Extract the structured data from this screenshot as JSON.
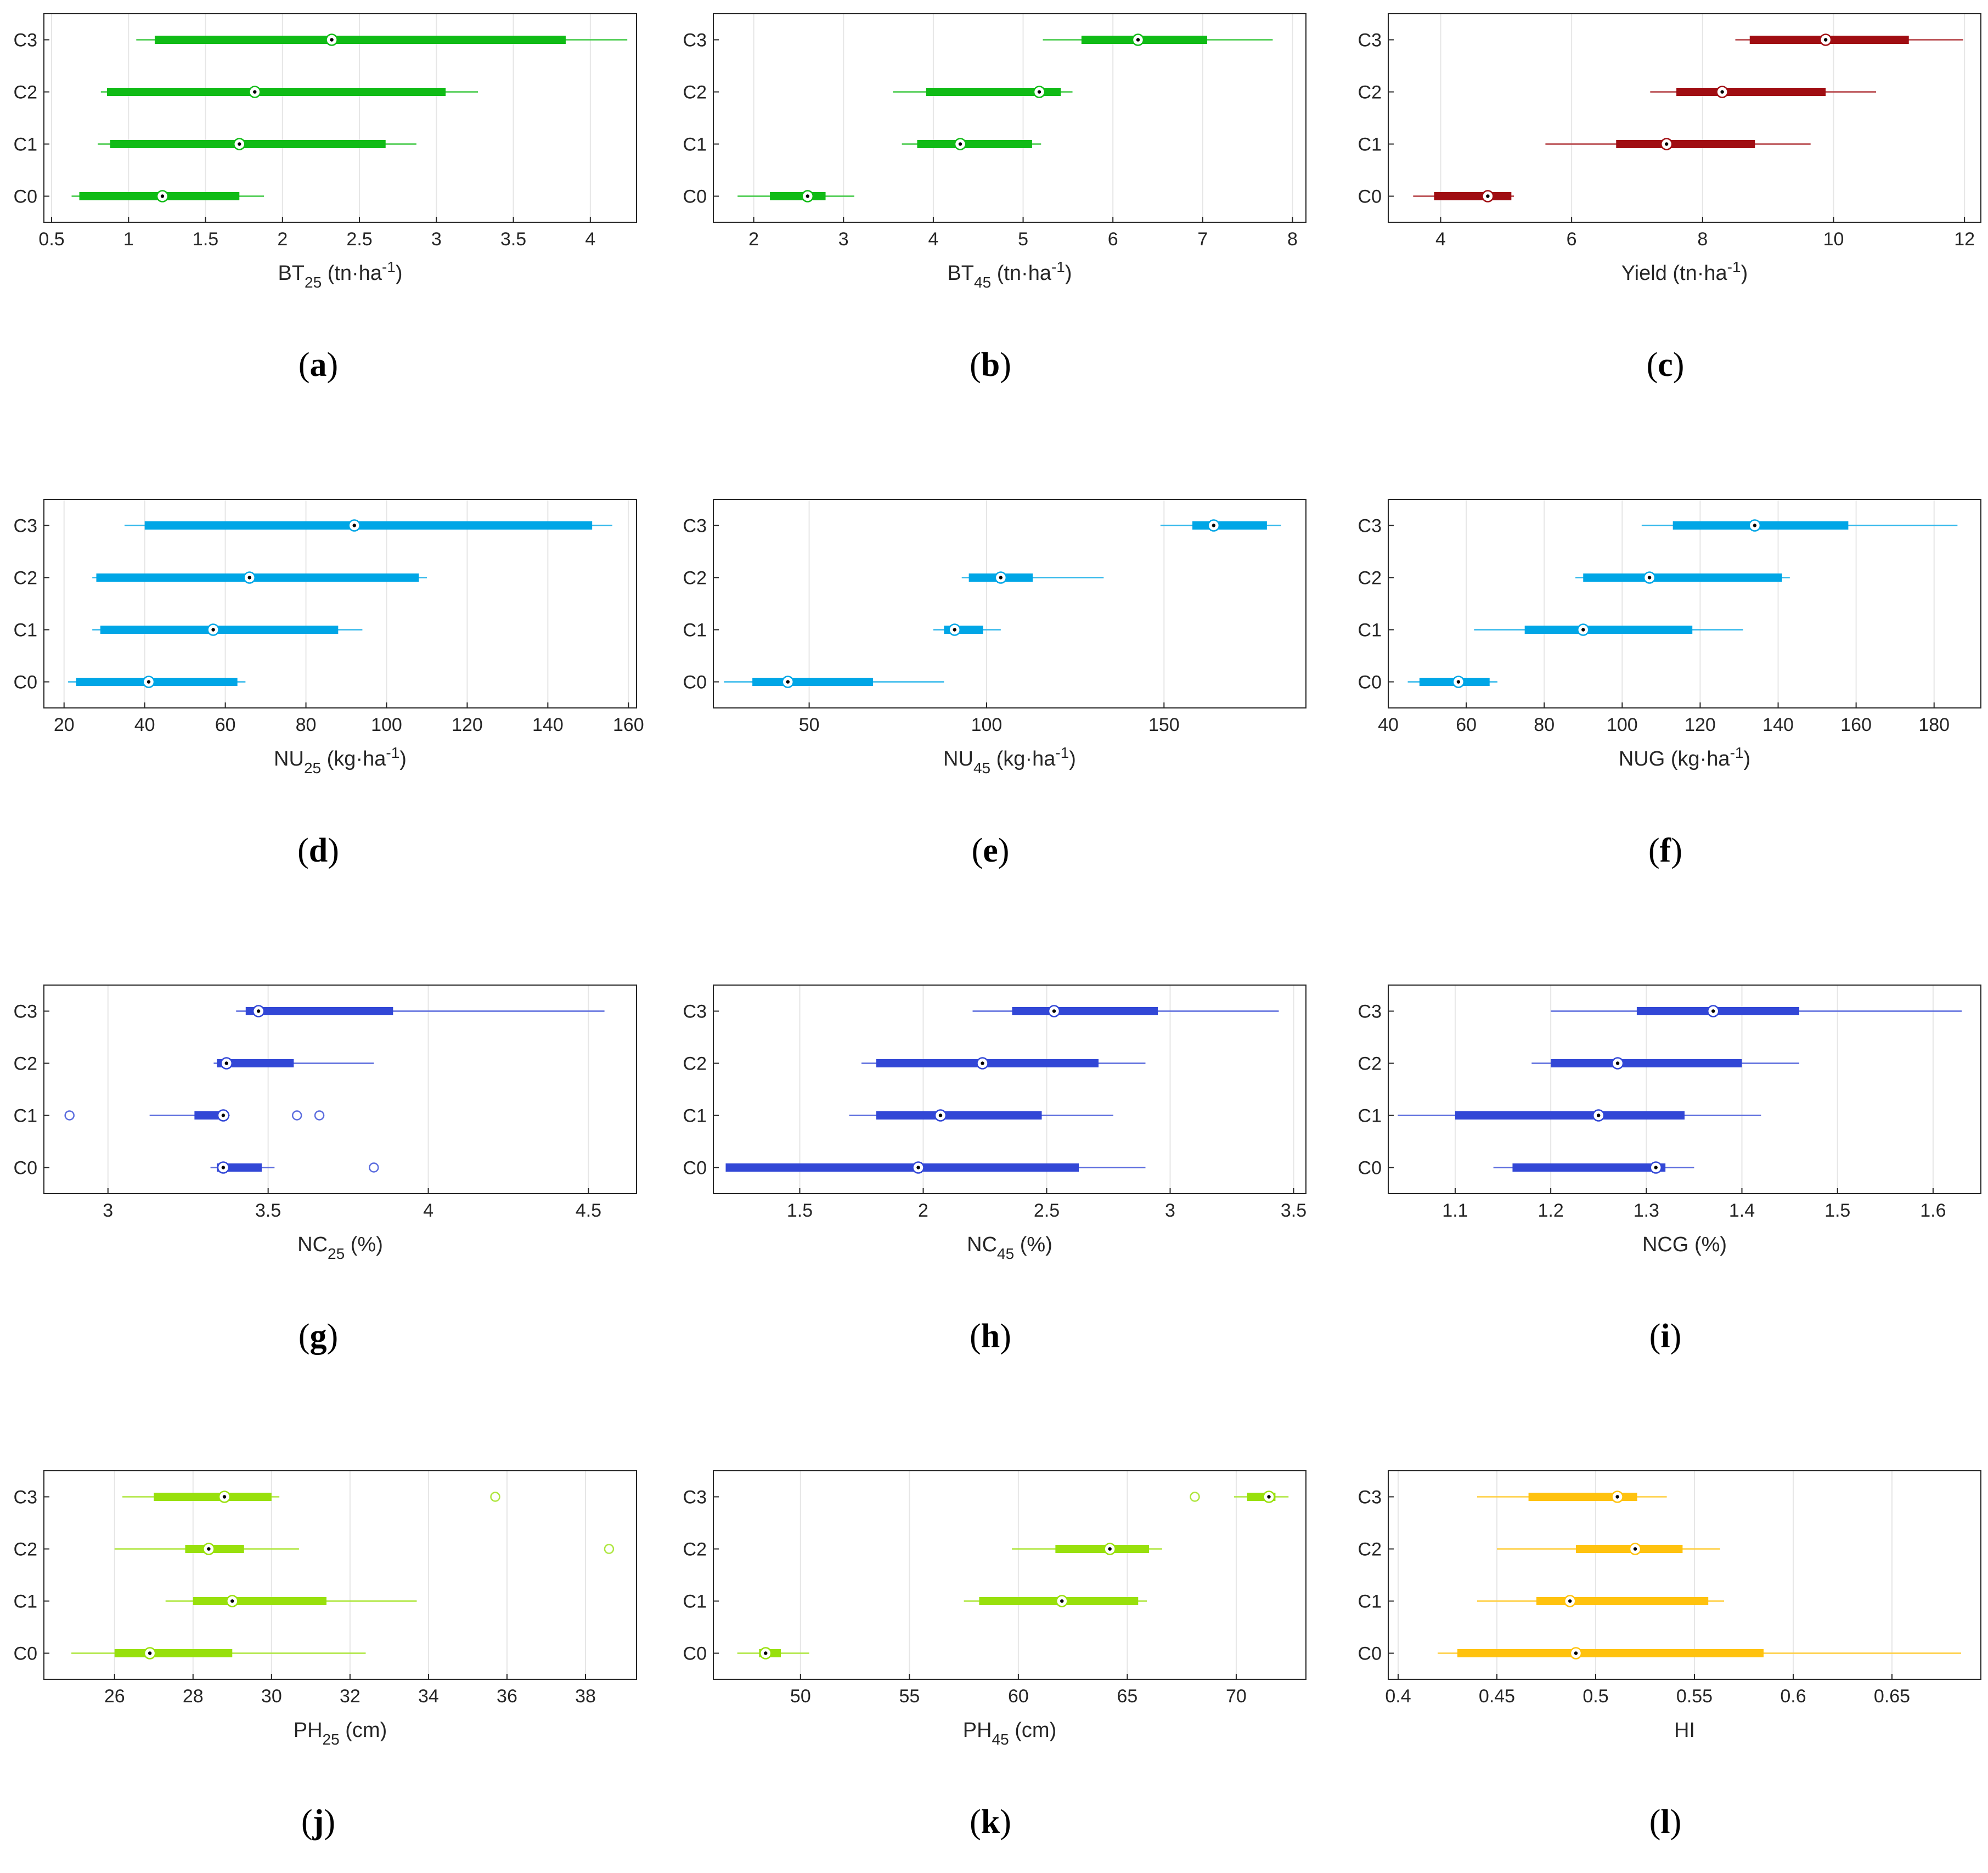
{
  "figure": {
    "panel_labels": [
      "a",
      "b",
      "c",
      "d",
      "e",
      "f",
      "g",
      "h",
      "i",
      "j",
      "k",
      "l"
    ]
  },
  "chart_data": [
    {
      "id": "a",
      "type": "boxplot-horizontal",
      "color": "#10bb16",
      "xlabel": {
        "main": "BT",
        "sub": "25",
        "unit": " (tn·ha",
        "sup": "-1",
        "close": ")"
      },
      "categories": [
        "C0",
        "C1",
        "C2",
        "C3"
      ],
      "xlim": [
        0.45,
        4.3
      ],
      "xticks": [
        0.5,
        1,
        1.5,
        2,
        2.5,
        3,
        3.5,
        4
      ],
      "xtick_labels": [
        "0.5",
        "1",
        "1.5",
        "2",
        "2.5",
        "3",
        "3.5",
        "4"
      ],
      "series": [
        {
          "category": "C0",
          "whisker_low": 0.63,
          "q1": 0.68,
          "median": 1.22,
          "q3": 1.72,
          "whisker_high": 1.88,
          "outliers": []
        },
        {
          "category": "C1",
          "whisker_low": 0.8,
          "q1": 0.88,
          "median": 1.72,
          "q3": 2.67,
          "whisker_high": 2.87,
          "outliers": []
        },
        {
          "category": "C2",
          "whisker_low": 0.82,
          "q1": 0.86,
          "median": 1.82,
          "q3": 3.06,
          "whisker_high": 3.27,
          "outliers": []
        },
        {
          "category": "C3",
          "whisker_low": 1.05,
          "q1": 1.17,
          "median": 2.32,
          "q3": 3.84,
          "whisker_high": 4.24,
          "outliers": []
        }
      ]
    },
    {
      "id": "b",
      "type": "boxplot-horizontal",
      "color": "#10bb16",
      "xlabel": {
        "main": "BT",
        "sub": "45",
        "unit": " (tn·ha",
        "sup": "-1",
        "close": ")"
      },
      "categories": [
        "C0",
        "C1",
        "C2",
        "C3"
      ],
      "xlim": [
        1.55,
        8.15
      ],
      "xticks": [
        2,
        3,
        4,
        5,
        6,
        7,
        8
      ],
      "xtick_labels": [
        "2",
        "3",
        "4",
        "5",
        "6",
        "7",
        "8"
      ],
      "series": [
        {
          "category": "C0",
          "whisker_low": 1.82,
          "q1": 2.18,
          "median": 2.6,
          "q3": 2.8,
          "whisker_high": 3.12,
          "outliers": []
        },
        {
          "category": "C1",
          "whisker_low": 3.65,
          "q1": 3.82,
          "median": 4.3,
          "q3": 5.1,
          "whisker_high": 5.2,
          "outliers": []
        },
        {
          "category": "C2",
          "whisker_low": 3.55,
          "q1": 3.92,
          "median": 5.18,
          "q3": 5.42,
          "whisker_high": 5.55,
          "outliers": []
        },
        {
          "category": "C3",
          "whisker_low": 5.22,
          "q1": 5.65,
          "median": 6.28,
          "q3": 7.05,
          "whisker_high": 7.78,
          "outliers": []
        }
      ]
    },
    {
      "id": "c",
      "type": "boxplot-horizontal",
      "color": "#a00d12",
      "xlabel": {
        "main": "Yield",
        "sub": "",
        "unit": " (tn·ha",
        "sup": "-1",
        "close": ")"
      },
      "categories": [
        "C0",
        "C1",
        "C2",
        "C3"
      ],
      "xlim": [
        3.2,
        12.25
      ],
      "xticks": [
        4,
        6,
        8,
        10,
        12
      ],
      "xtick_labels": [
        "4",
        "6",
        "8",
        "10",
        "12"
      ],
      "series": [
        {
          "category": "C0",
          "whisker_low": 3.58,
          "q1": 3.9,
          "median": 4.72,
          "q3": 5.08,
          "whisker_high": 5.12,
          "outliers": []
        },
        {
          "category": "C1",
          "whisker_low": 5.6,
          "q1": 6.68,
          "median": 7.45,
          "q3": 8.8,
          "whisker_high": 9.65,
          "outliers": []
        },
        {
          "category": "C2",
          "whisker_low": 7.2,
          "q1": 7.6,
          "median": 8.3,
          "q3": 9.88,
          "whisker_high": 10.65,
          "outliers": []
        },
        {
          "category": "C3",
          "whisker_low": 8.5,
          "q1": 8.72,
          "median": 9.88,
          "q3": 11.15,
          "whisker_high": 11.98,
          "outliers": []
        }
      ]
    },
    {
      "id": "d",
      "type": "boxplot-horizontal",
      "color": "#00a6e6",
      "xlabel": {
        "main": "NU",
        "sub": "25",
        "unit": " (kg·ha",
        "sup": "-1",
        "close": ")"
      },
      "categories": [
        "C0",
        "C1",
        "C2",
        "C3"
      ],
      "xlim": [
        15,
        162
      ],
      "xticks": [
        20,
        40,
        60,
        80,
        100,
        120,
        140,
        160
      ],
      "xtick_labels": [
        "20",
        "40",
        "60",
        "80",
        "100",
        "120",
        "140",
        "160"
      ],
      "series": [
        {
          "category": "C0",
          "whisker_low": 21,
          "q1": 23,
          "median": 41,
          "q3": 63,
          "whisker_high": 65,
          "outliers": []
        },
        {
          "category": "C1",
          "whisker_low": 27,
          "q1": 29,
          "median": 57,
          "q3": 88,
          "whisker_high": 94,
          "outliers": []
        },
        {
          "category": "C2",
          "whisker_low": 27,
          "q1": 28,
          "median": 66,
          "q3": 108,
          "whisker_high": 110,
          "outliers": []
        },
        {
          "category": "C3",
          "whisker_low": 35,
          "q1": 40,
          "median": 92,
          "q3": 151,
          "whisker_high": 156,
          "outliers": []
        }
      ]
    },
    {
      "id": "e",
      "type": "boxplot-horizontal",
      "color": "#00a6e6",
      "xlabel": {
        "main": "NU",
        "sub": "45",
        "unit": " (kg·ha",
        "sup": "-1",
        "close": ")"
      },
      "categories": [
        "C0",
        "C1",
        "C2",
        "C3"
      ],
      "xlim": [
        23,
        190
      ],
      "xticks": [
        50,
        100,
        150
      ],
      "xtick_labels": [
        "50",
        "100",
        "150"
      ],
      "series": [
        {
          "category": "C0",
          "whisker_low": 26,
          "q1": 34,
          "median": 44,
          "q3": 68,
          "whisker_high": 88,
          "outliers": []
        },
        {
          "category": "C1",
          "whisker_low": 85,
          "q1": 88,
          "median": 91,
          "q3": 99,
          "whisker_high": 104,
          "outliers": []
        },
        {
          "category": "C2",
          "whisker_low": 93,
          "q1": 95,
          "median": 104,
          "q3": 113,
          "whisker_high": 133,
          "outliers": []
        },
        {
          "category": "C3",
          "whisker_low": 149,
          "q1": 158,
          "median": 164,
          "q3": 179,
          "whisker_high": 183,
          "outliers": []
        }
      ]
    },
    {
      "id": "f",
      "type": "boxplot-horizontal",
      "color": "#00a6e6",
      "xlabel": {
        "main": "NUG",
        "sub": "",
        "unit": " (kg·ha",
        "sup": "-1",
        "close": ")"
      },
      "categories": [
        "C0",
        "C1",
        "C2",
        "C3"
      ],
      "xlim": [
        40,
        192
      ],
      "xticks": [
        40,
        60,
        80,
        100,
        120,
        140,
        160,
        180
      ],
      "xtick_labels": [
        "40",
        "60",
        "80",
        "100",
        "120",
        "140",
        "160",
        "180"
      ],
      "series": [
        {
          "category": "C0",
          "whisker_low": 45,
          "q1": 48,
          "median": 58,
          "q3": 66,
          "whisker_high": 68,
          "outliers": []
        },
        {
          "category": "C1",
          "whisker_low": 62,
          "q1": 75,
          "median": 90,
          "q3": 118,
          "whisker_high": 131,
          "outliers": []
        },
        {
          "category": "C2",
          "whisker_low": 88,
          "q1": 90,
          "median": 107,
          "q3": 141,
          "whisker_high": 143,
          "outliers": []
        },
        {
          "category": "C3",
          "whisker_low": 105,
          "q1": 113,
          "median": 134,
          "q3": 158,
          "whisker_high": 186,
          "outliers": []
        }
      ]
    },
    {
      "id": "g",
      "type": "boxplot-horizontal",
      "color": "#3247d6",
      "xlabel": {
        "main": "NC",
        "sub": "25",
        "unit": " (%)",
        "sup": "",
        "close": ""
      },
      "categories": [
        "C0",
        "C1",
        "C2",
        "C3"
      ],
      "xlim": [
        2.8,
        4.65
      ],
      "xticks": [
        3,
        3.5,
        4,
        4.5
      ],
      "xtick_labels": [
        "3",
        "3.5",
        "4",
        "4.5"
      ],
      "series": [
        {
          "category": "C0",
          "whisker_low": 3.32,
          "q1": 3.34,
          "median": 3.36,
          "q3": 3.48,
          "whisker_high": 3.52,
          "outliers": [
            3.83
          ]
        },
        {
          "category": "C1",
          "whisker_low": 3.13,
          "q1": 3.27,
          "median": 3.36,
          "q3": 3.36,
          "whisker_high": 3.38,
          "outliers": [
            2.88,
            3.59,
            3.66
          ]
        },
        {
          "category": "C2",
          "whisker_low": 3.33,
          "q1": 3.34,
          "median": 3.37,
          "q3": 3.58,
          "whisker_high": 3.83,
          "outliers": []
        },
        {
          "category": "C3",
          "whisker_low": 3.4,
          "q1": 3.43,
          "median": 3.47,
          "q3": 3.89,
          "whisker_high": 4.55,
          "outliers": []
        }
      ]
    },
    {
      "id": "h",
      "type": "boxplot-horizontal",
      "color": "#3247d6",
      "xlabel": {
        "main": "NC",
        "sub": "45",
        "unit": " (%)",
        "sup": "",
        "close": ""
      },
      "categories": [
        "C0",
        "C1",
        "C2",
        "C3"
      ],
      "xlim": [
        1.15,
        3.55
      ],
      "xticks": [
        1.5,
        2,
        2.5,
        3,
        3.5
      ],
      "xtick_labels": [
        "1.5",
        "2",
        "2.5",
        "3",
        "3.5"
      ],
      "series": [
        {
          "category": "C0",
          "whisker_low": 1.2,
          "q1": 1.2,
          "median": 1.98,
          "q3": 2.63,
          "whisker_high": 2.9,
          "outliers": []
        },
        {
          "category": "C1",
          "whisker_low": 1.7,
          "q1": 1.81,
          "median": 2.07,
          "q3": 2.48,
          "whisker_high": 2.77,
          "outliers": []
        },
        {
          "category": "C2",
          "whisker_low": 1.75,
          "q1": 1.81,
          "median": 2.24,
          "q3": 2.71,
          "whisker_high": 2.9,
          "outliers": []
        },
        {
          "category": "C3",
          "whisker_low": 2.2,
          "q1": 2.36,
          "median": 2.53,
          "q3": 2.95,
          "whisker_high": 3.44,
          "outliers": []
        }
      ]
    },
    {
      "id": "i",
      "type": "boxplot-horizontal",
      "color": "#3247d6",
      "xlabel": {
        "main": "NCG",
        "sub": "",
        "unit": " (%)",
        "sup": "",
        "close": ""
      },
      "categories": [
        "C0",
        "C1",
        "C2",
        "C3"
      ],
      "xlim": [
        1.03,
        1.65
      ],
      "xticks": [
        1.1,
        1.2,
        1.3,
        1.4,
        1.5,
        1.6
      ],
      "xtick_labels": [
        "1.1",
        "1.2",
        "1.3",
        "1.4",
        "1.5",
        "1.6"
      ],
      "series": [
        {
          "category": "C0",
          "whisker_low": 1.14,
          "q1": 1.16,
          "median": 1.31,
          "q3": 1.32,
          "whisker_high": 1.35,
          "outliers": []
        },
        {
          "category": "C1",
          "whisker_low": 1.04,
          "q1": 1.1,
          "median": 1.25,
          "q3": 1.34,
          "whisker_high": 1.42,
          "outliers": []
        },
        {
          "category": "C2",
          "whisker_low": 1.18,
          "q1": 1.2,
          "median": 1.27,
          "q3": 1.4,
          "whisker_high": 1.46,
          "outliers": []
        },
        {
          "category": "C3",
          "whisker_low": 1.2,
          "q1": 1.29,
          "median": 1.37,
          "q3": 1.46,
          "whisker_high": 1.63,
          "outliers": []
        }
      ]
    },
    {
      "id": "j",
      "type": "boxplot-horizontal",
      "color": "#98e00c",
      "xlabel": {
        "main": "PH",
        "sub": "25",
        "unit": " (cm)",
        "sup": "",
        "close": ""
      },
      "categories": [
        "C0",
        "C1",
        "C2",
        "C3"
      ],
      "xlim": [
        24.2,
        39.3
      ],
      "xticks": [
        26,
        28,
        30,
        32,
        34,
        36,
        38
      ],
      "xtick_labels": [
        "26",
        "28",
        "30",
        "32",
        "34",
        "36",
        "38"
      ],
      "series": [
        {
          "category": "C0",
          "whisker_low": 24.9,
          "q1": 26.0,
          "median": 26.9,
          "q3": 29.0,
          "whisker_high": 32.4,
          "outliers": []
        },
        {
          "category": "C1",
          "whisker_low": 27.3,
          "q1": 28.0,
          "median": 29.0,
          "q3": 31.4,
          "whisker_high": 33.7,
          "outliers": []
        },
        {
          "category": "C2",
          "whisker_low": 26.0,
          "q1": 27.8,
          "median": 28.4,
          "q3": 29.3,
          "whisker_high": 30.7,
          "outliers": [
            38.6
          ]
        },
        {
          "category": "C3",
          "whisker_low": 26.2,
          "q1": 27.0,
          "median": 28.8,
          "q3": 30.0,
          "whisker_high": 30.2,
          "outliers": [
            35.7
          ]
        }
      ]
    },
    {
      "id": "k",
      "type": "boxplot-horizontal",
      "color": "#98e00c",
      "xlabel": {
        "main": "PH",
        "sub": "45",
        "unit": " (cm)",
        "sup": "",
        "close": ""
      },
      "categories": [
        "C0",
        "C1",
        "C2",
        "C3"
      ],
      "xlim": [
        46.0,
        73.2
      ],
      "xticks": [
        50,
        55,
        60,
        65,
        70
      ],
      "xtick_labels": [
        "50",
        "55",
        "60",
        "65",
        "70"
      ],
      "series": [
        {
          "category": "C0",
          "whisker_low": 47.1,
          "q1": 48.1,
          "median": 48.4,
          "q3": 49.1,
          "whisker_high": 50.4,
          "outliers": []
        },
        {
          "category": "C1",
          "whisker_low": 57.5,
          "q1": 58.2,
          "median": 62.0,
          "q3": 65.5,
          "whisker_high": 65.9,
          "outliers": []
        },
        {
          "category": "C2",
          "whisker_low": 59.7,
          "q1": 61.7,
          "median": 64.2,
          "q3": 66.0,
          "whisker_high": 66.6,
          "outliers": []
        },
        {
          "category": "C3",
          "whisker_low": 69.9,
          "q1": 70.5,
          "median": 71.5,
          "q3": 71.8,
          "whisker_high": 72.4,
          "outliers": [
            68.1
          ]
        }
      ]
    },
    {
      "id": "l",
      "type": "boxplot-horizontal",
      "color": "#ffc20e",
      "xlabel": {
        "main": "HI",
        "sub": "",
        "unit": "",
        "sup": "",
        "close": ""
      },
      "categories": [
        "C0",
        "C1",
        "C2",
        "C3"
      ],
      "xlim": [
        0.395,
        0.695
      ],
      "xticks": [
        0.4,
        0.45,
        0.5,
        0.55,
        0.6,
        0.65
      ],
      "xtick_labels": [
        "0.4",
        "0.45",
        "0.5",
        "0.55",
        "0.6",
        "0.65"
      ],
      "series": [
        {
          "category": "C0",
          "whisker_low": 0.42,
          "q1": 0.43,
          "median": 0.49,
          "q3": 0.585,
          "whisker_high": 0.685,
          "outliers": []
        },
        {
          "category": "C1",
          "whisker_low": 0.44,
          "q1": 0.47,
          "median": 0.487,
          "q3": 0.557,
          "whisker_high": 0.565,
          "outliers": []
        },
        {
          "category": "C2",
          "whisker_low": 0.45,
          "q1": 0.49,
          "median": 0.52,
          "q3": 0.544,
          "whisker_high": 0.563,
          "outliers": []
        },
        {
          "category": "C3",
          "whisker_low": 0.44,
          "q1": 0.466,
          "median": 0.511,
          "q3": 0.521,
          "whisker_high": 0.536,
          "outliers": []
        }
      ]
    }
  ]
}
